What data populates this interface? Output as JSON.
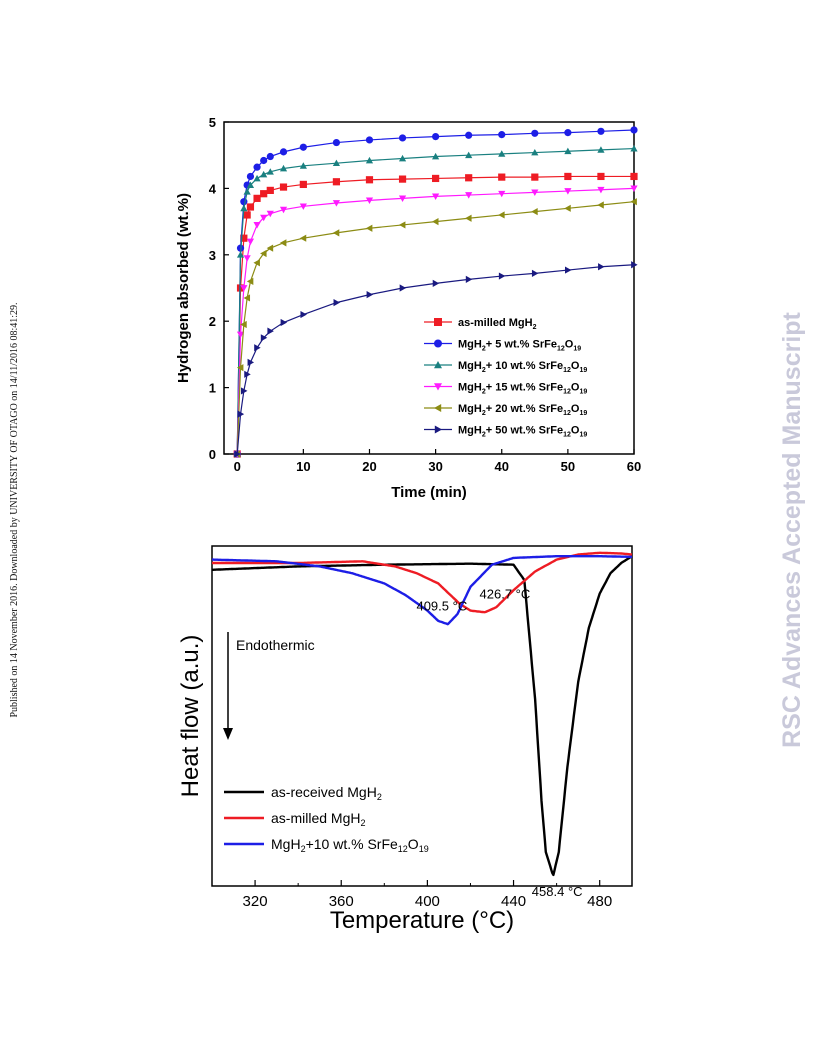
{
  "side_note": "Published on 14 November 2016. Downloaded by UNIVERSITY OF OTAGO on 14/11/2016 08:41:29.",
  "watermark": "RSC Advances Accepted Manuscript",
  "chart_data": [
    {
      "type": "scatter",
      "xlabel": "Time (min)",
      "ylabel": "Hydrogen absorbed (wt.%)",
      "xlim": [
        -2,
        60
      ],
      "ylim": [
        0,
        5
      ],
      "xticks": [
        0,
        10,
        20,
        30,
        40,
        50,
        60
      ],
      "yticks": [
        0,
        1,
        2,
        3,
        4,
        5
      ],
      "grid": false,
      "legend_position": "bottom-right",
      "series": [
        {
          "name": "as-milled MgH2",
          "legend_parts": [
            "as-milled MgH",
            "2",
            "",
            "",
            "",
            ""
          ],
          "color": "#ee1c24",
          "marker": "square",
          "x": [
            0,
            0.5,
            1,
            1.5,
            2,
            3,
            4,
            5,
            7,
            10,
            15,
            20,
            25,
            30,
            35,
            40,
            45,
            50,
            55,
            60
          ],
          "y": [
            0,
            2.5,
            3.25,
            3.6,
            3.72,
            3.85,
            3.92,
            3.97,
            4.02,
            4.06,
            4.1,
            4.13,
            4.14,
            4.15,
            4.16,
            4.17,
            4.17,
            4.18,
            4.18,
            4.18
          ]
        },
        {
          "name": "MgH2+ 5 wt.% SrFe12O19",
          "legend_parts": [
            "MgH",
            "2",
            "+ 5 wt.% SrFe",
            "12",
            "O",
            "19"
          ],
          "color": "#1d1ee6",
          "marker": "circle",
          "x": [
            0,
            0.5,
            1,
            1.5,
            2,
            3,
            4,
            5,
            7,
            10,
            15,
            20,
            25,
            30,
            35,
            40,
            45,
            50,
            55,
            60
          ],
          "y": [
            0,
            3.1,
            3.8,
            4.05,
            4.18,
            4.32,
            4.42,
            4.48,
            4.55,
            4.62,
            4.69,
            4.73,
            4.76,
            4.78,
            4.8,
            4.81,
            4.83,
            4.84,
            4.86,
            4.88
          ]
        },
        {
          "name": "MgH2+ 10 wt.% SrFe12O19",
          "legend_parts": [
            "MgH",
            "2",
            "+ 10 wt.% SrFe",
            "12",
            "O",
            "19"
          ],
          "color": "#1a8080",
          "marker": "triangle-up",
          "x": [
            0,
            0.5,
            1,
            1.5,
            2,
            3,
            4,
            5,
            7,
            10,
            15,
            20,
            25,
            30,
            35,
            40,
            45,
            50,
            55,
            60
          ],
          "y": [
            0,
            3.0,
            3.7,
            3.95,
            4.05,
            4.15,
            4.21,
            4.25,
            4.3,
            4.34,
            4.38,
            4.42,
            4.45,
            4.48,
            4.5,
            4.52,
            4.54,
            4.56,
            4.58,
            4.6
          ]
        },
        {
          "name": "MgH2+ 15 wt.% SrFe12O19",
          "legend_parts": [
            "MgH",
            "2",
            "+ 15 wt.% SrFe",
            "12",
            "O",
            "19"
          ],
          "color": "#ff1aff",
          "marker": "triangle-down",
          "x": [
            0,
            0.5,
            1,
            1.5,
            2,
            3,
            4,
            5,
            7,
            10,
            15,
            20,
            25,
            30,
            35,
            40,
            45,
            50,
            55,
            60
          ],
          "y": [
            0,
            1.8,
            2.5,
            2.95,
            3.2,
            3.45,
            3.56,
            3.62,
            3.68,
            3.73,
            3.78,
            3.82,
            3.85,
            3.88,
            3.9,
            3.92,
            3.94,
            3.96,
            3.98,
            4.0
          ]
        },
        {
          "name": "MgH2+ 20 wt.% SrFe12O19",
          "legend_parts": [
            "MgH",
            "2",
            "+ 20 wt.% SrFe",
            "12",
            "O",
            "19"
          ],
          "color": "#8c8c14",
          "marker": "triangle-left",
          "x": [
            0,
            0.5,
            1,
            1.5,
            2,
            3,
            4,
            5,
            7,
            10,
            15,
            20,
            25,
            30,
            35,
            40,
            45,
            50,
            55,
            60
          ],
          "y": [
            0,
            1.3,
            1.95,
            2.35,
            2.6,
            2.88,
            3.02,
            3.1,
            3.18,
            3.25,
            3.33,
            3.4,
            3.45,
            3.5,
            3.55,
            3.6,
            3.65,
            3.7,
            3.75,
            3.8
          ]
        },
        {
          "name": "MgH2+ 50 wt.% SrFe12O19",
          "legend_parts": [
            "MgH",
            "2",
            "+ 50 wt.% SrFe",
            "12",
            "O",
            "19"
          ],
          "color": "#1a1a80",
          "marker": "triangle-right",
          "x": [
            0,
            0.5,
            1,
            1.5,
            2,
            3,
            4,
            5,
            7,
            10,
            15,
            20,
            25,
            30,
            35,
            40,
            45,
            50,
            55,
            60
          ],
          "y": [
            0,
            0.6,
            0.95,
            1.2,
            1.38,
            1.6,
            1.75,
            1.85,
            1.98,
            2.1,
            2.28,
            2.4,
            2.5,
            2.57,
            2.63,
            2.68,
            2.72,
            2.77,
            2.82,
            2.85
          ]
        }
      ]
    },
    {
      "type": "line",
      "xlabel_parts": [
        "Temperature (",
        "°",
        "C)"
      ],
      "ylabel": "Heat flow (a.u.)",
      "xlim": [
        300,
        495
      ],
      "ylim": [
        0,
        1
      ],
      "xticks": [
        320,
        360,
        400,
        440,
        480
      ],
      "grid": false,
      "legend_position": "bottom-left",
      "annotation_text": "Endothermic",
      "annotations": [
        {
          "value": "409.5",
          "unit": " °C",
          "x": 409.5,
          "y": 0.875
        },
        {
          "value": "426.7",
          "unit": " °C",
          "x": 426.7,
          "y": 0.905
        },
        {
          "value": "458.4",
          "unit": " °C",
          "x": 458.4,
          "y": 0.03
        }
      ],
      "series": [
        {
          "name": "as-received MgH2",
          "legend_parts": [
            "as-received MgH",
            "2",
            "",
            "",
            "",
            ""
          ],
          "color": "#000000",
          "x": [
            300,
            340,
            380,
            420,
            440,
            445,
            450,
            453,
            455,
            458.4,
            461,
            465,
            470,
            475,
            480,
            485,
            490,
            495
          ],
          "y": [
            0.93,
            0.94,
            0.945,
            0.948,
            0.945,
            0.9,
            0.55,
            0.25,
            0.1,
            0.03,
            0.1,
            0.35,
            0.6,
            0.76,
            0.86,
            0.92,
            0.95,
            0.97
          ]
        },
        {
          "name": "as-milled MgH2",
          "legend_parts": [
            "as-milled MgH",
            "2",
            "",
            "",
            "",
            ""
          ],
          "color": "#ee1c24",
          "x": [
            300,
            340,
            370,
            385,
            395,
            405,
            415,
            420,
            426.7,
            432,
            440,
            450,
            460,
            470,
            480,
            490,
            495
          ],
          "y": [
            0.95,
            0.95,
            0.955,
            0.94,
            0.92,
            0.89,
            0.83,
            0.81,
            0.805,
            0.82,
            0.87,
            0.925,
            0.96,
            0.975,
            0.98,
            0.978,
            0.975
          ]
        },
        {
          "name": "MgH2+10 wt.% SrFe12O19",
          "legend_parts": [
            "MgH",
            "2",
            "+10 wt.% SrFe",
            "12",
            "O",
            "19"
          ],
          "color": "#1d1ee6",
          "x": [
            300,
            330,
            350,
            365,
            380,
            390,
            400,
            405,
            409.5,
            414,
            420,
            430,
            440,
            460,
            480,
            495
          ],
          "y": [
            0.96,
            0.955,
            0.94,
            0.92,
            0.89,
            0.855,
            0.81,
            0.78,
            0.77,
            0.8,
            0.88,
            0.945,
            0.965,
            0.97,
            0.97,
            0.968
          ]
        }
      ]
    }
  ]
}
